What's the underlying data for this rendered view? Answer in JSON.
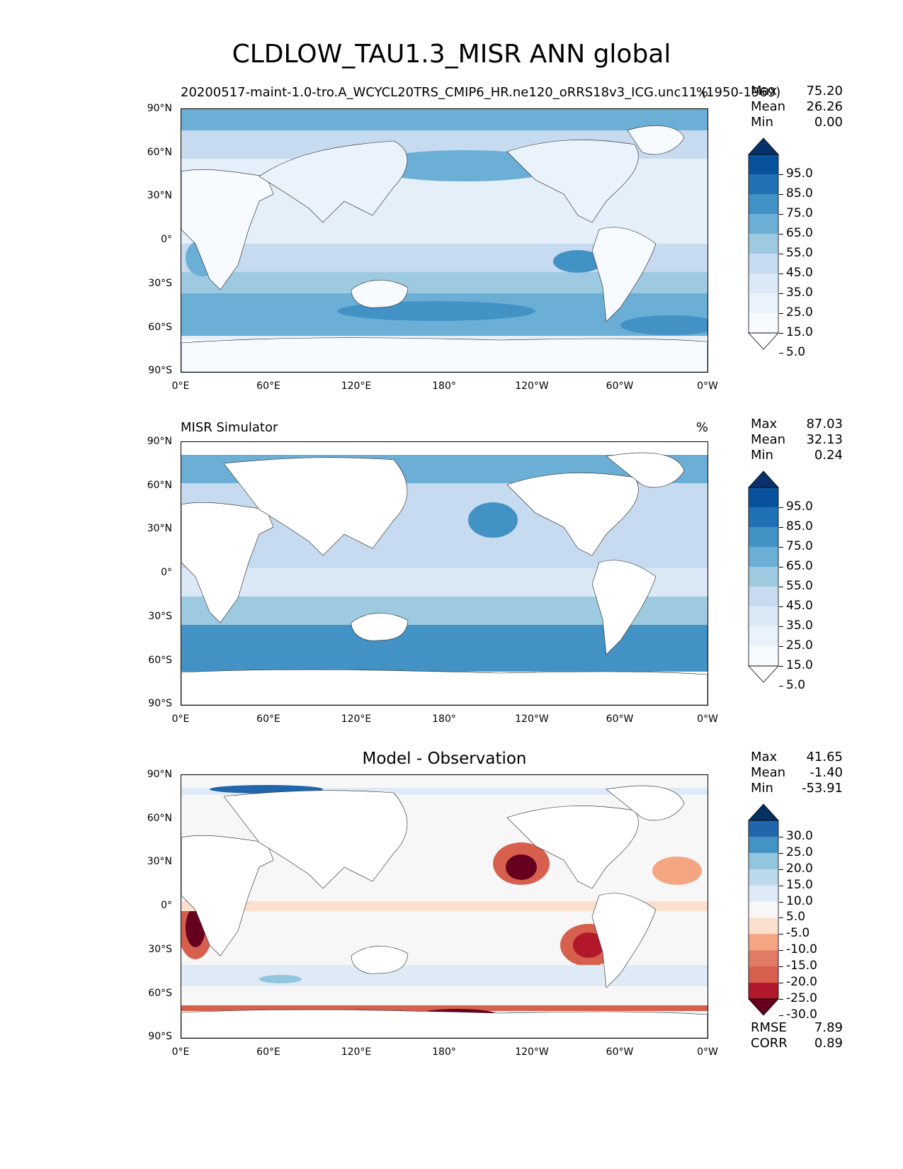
{
  "title": "CLDLOW_TAU1.3_MISR ANN global",
  "x_ticks": [
    "0°E",
    "60°E",
    "120°E",
    "180°",
    "120°W",
    "60°W",
    "0°W"
  ],
  "y_ticks": [
    "90°N",
    "60°N",
    "30°N",
    "0°",
    "30°S",
    "60°S",
    "90°S"
  ],
  "panels": [
    {
      "subtitle_left": "20200517-maint-1.0-tro.A_WCYCL20TRS_CMIP6_HR.ne120_oRRS18v3_ICG.unc11 (1950-1969)",
      "subtitle_center": "",
      "units": "%",
      "stats": [
        {
          "label": "Max",
          "value": "75.20"
        },
        {
          "label": "Mean",
          "value": "26.26"
        },
        {
          "label": "Min",
          "value": "0.00"
        }
      ],
      "colorbar_labels": [
        "95.0",
        "85.0",
        "75.0",
        "65.0",
        "55.0",
        "45.0",
        "35.0",
        "25.0",
        "15.0",
        "5.0"
      ],
      "colorbar_colors": [
        "#08306b",
        "#08519c",
        "#2171b5",
        "#4292c6",
        "#6baed6",
        "#9ecae1",
        "#c6dbef",
        "#dbe9f6",
        "#eaf2fb",
        "#f7fbff",
        "#ffffff"
      ],
      "metrics": []
    },
    {
      "subtitle_left": "MISR Simulator",
      "subtitle_center": "",
      "units": "%",
      "stats": [
        {
          "label": "Max",
          "value": "87.03"
        },
        {
          "label": "Mean",
          "value": "32.13"
        },
        {
          "label": "Min",
          "value": "0.24"
        }
      ],
      "colorbar_labels": [
        "95.0",
        "85.0",
        "75.0",
        "65.0",
        "55.0",
        "45.0",
        "35.0",
        "25.0",
        "15.0",
        "5.0"
      ],
      "colorbar_colors": [
        "#08306b",
        "#08519c",
        "#2171b5",
        "#4292c6",
        "#6baed6",
        "#9ecae1",
        "#c6dbef",
        "#dbe9f6",
        "#eaf2fb",
        "#f7fbff",
        "#ffffff"
      ],
      "metrics": []
    },
    {
      "subtitle_left": "",
      "subtitle_center": "Model - Observation",
      "units": "",
      "stats": [
        {
          "label": "Max",
          "value": "41.65"
        },
        {
          "label": "Mean",
          "value": "-1.40"
        },
        {
          "label": "Min",
          "value": "-53.91"
        }
      ],
      "colorbar_labels": [
        "30.0",
        "25.0",
        "20.0",
        "15.0",
        "10.0",
        "5.0",
        "-5.0",
        "-10.0",
        "-15.0",
        "-20.0",
        "-25.0",
        "-30.0"
      ],
      "colorbar_colors": [
        "#053061",
        "#2166ac",
        "#4393c3",
        "#92c5de",
        "#bcd9eb",
        "#deebf7",
        "#f7f7f7",
        "#fbe0d0",
        "#f4a582",
        "#e07b65",
        "#d6604d",
        "#b2182b",
        "#67001f"
      ],
      "metrics": [
        {
          "label": "RMSE",
          "value": "7.89"
        },
        {
          "label": "CORR",
          "value": "0.89"
        }
      ]
    }
  ]
}
